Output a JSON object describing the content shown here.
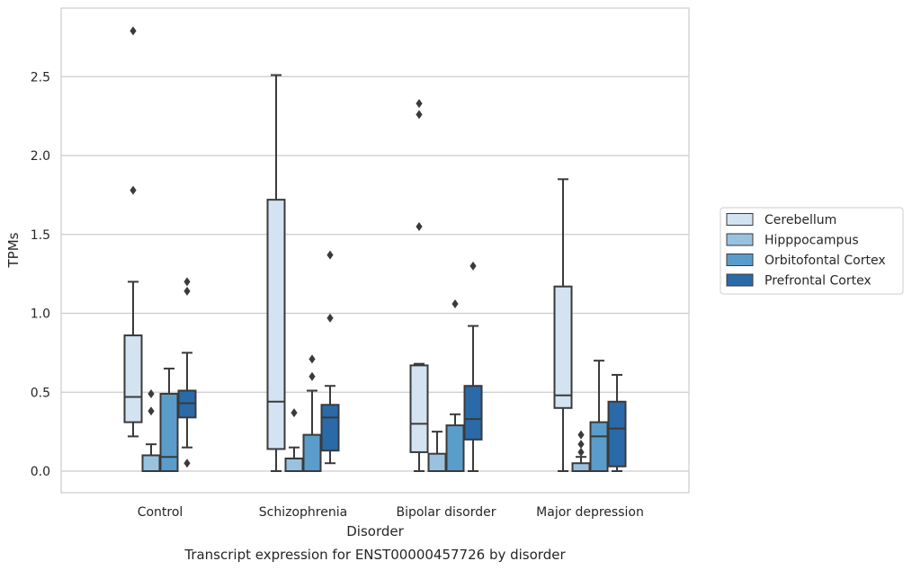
{
  "chart_data": {
    "type": "boxplot",
    "xlabel": "Disorder",
    "ylabel": "TPMs",
    "caption": "Transcript expression for ENST00000457726 by disorder",
    "ylim": [
      -0.14,
      2.95
    ],
    "yticks": [
      0.0,
      0.5,
      1.0,
      1.5,
      2.0,
      2.5
    ],
    "ytick_labels": [
      "0.0",
      "0.5",
      "1.0",
      "1.5",
      "2.0",
      "2.5"
    ],
    "grid": "horizontal",
    "legend_position": "right",
    "categories": [
      "Control",
      "Schizophrenia",
      "Bipolar disorder",
      "Major depression"
    ],
    "series": [
      {
        "name": "Cerebellum",
        "color": "#d3e3f1",
        "boxes": [
          {
            "whisker_low": 0.22,
            "q1": 0.31,
            "median": 0.47,
            "q3": 0.86,
            "whisker_high": 1.2,
            "outliers": [
              1.78,
              2.79
            ]
          },
          {
            "whisker_low": 0.0,
            "q1": 0.14,
            "median": 0.44,
            "q3": 1.72,
            "whisker_high": 2.51,
            "outliers": []
          },
          {
            "whisker_low": 0.0,
            "q1": 0.12,
            "median": 0.3,
            "q3": 0.67,
            "whisker_high": 0.68,
            "outliers": [
              1.55,
              2.26,
              2.33
            ]
          },
          {
            "whisker_low": 0.0,
            "q1": 0.4,
            "median": 0.48,
            "q3": 1.17,
            "whisker_high": 1.85,
            "outliers": []
          }
        ]
      },
      {
        "name": "Hipppocampus",
        "color": "#99c2e0",
        "boxes": [
          {
            "whisker_low": 0.0,
            "q1": 0.0,
            "median": 0.0,
            "q3": 0.1,
            "whisker_high": 0.17,
            "outliers": [
              0.38,
              0.49
            ]
          },
          {
            "whisker_low": 0.0,
            "q1": 0.0,
            "median": 0.0,
            "q3": 0.08,
            "whisker_high": 0.15,
            "outliers": [
              0.37
            ]
          },
          {
            "whisker_low": 0.0,
            "q1": 0.0,
            "median": 0.0,
            "q3": 0.11,
            "whisker_high": 0.25,
            "outliers": []
          },
          {
            "whisker_low": 0.0,
            "q1": 0.0,
            "median": 0.0,
            "q3": 0.05,
            "whisker_high": 0.09,
            "outliers": [
              0.12,
              0.17,
              0.23
            ]
          }
        ]
      },
      {
        "name": "Orbitofontal Cortex",
        "color": "#5a9dcb",
        "boxes": [
          {
            "whisker_low": 0.0,
            "q1": 0.0,
            "median": 0.09,
            "q3": 0.49,
            "whisker_high": 0.65,
            "outliers": []
          },
          {
            "whisker_low": 0.0,
            "q1": 0.0,
            "median": 0.0,
            "q3": 0.23,
            "whisker_high": 0.51,
            "outliers": [
              0.6,
              0.71
            ]
          },
          {
            "whisker_low": 0.0,
            "q1": 0.0,
            "median": 0.0,
            "q3": 0.29,
            "whisker_high": 0.36,
            "outliers": [
              1.06
            ]
          },
          {
            "whisker_low": 0.0,
            "q1": 0.0,
            "median": 0.22,
            "q3": 0.31,
            "whisker_high": 0.7,
            "outliers": []
          }
        ]
      },
      {
        "name": "Prefrontal Cortex",
        "color": "#2a6aa8",
        "boxes": [
          {
            "whisker_low": 0.15,
            "q1": 0.34,
            "median": 0.43,
            "q3": 0.51,
            "whisker_high": 0.75,
            "outliers": [
              0.05,
              1.14,
              1.2
            ]
          },
          {
            "whisker_low": 0.05,
            "q1": 0.13,
            "median": 0.34,
            "q3": 0.42,
            "whisker_high": 0.54,
            "outliers": [
              0.97,
              1.37
            ]
          },
          {
            "whisker_low": 0.0,
            "q1": 0.2,
            "median": 0.33,
            "q3": 0.54,
            "whisker_high": 0.92,
            "outliers": [
              1.3
            ]
          },
          {
            "whisker_low": 0.0,
            "q1": 0.03,
            "median": 0.27,
            "q3": 0.44,
            "whisker_high": 0.61,
            "outliers": []
          }
        ]
      }
    ]
  }
}
